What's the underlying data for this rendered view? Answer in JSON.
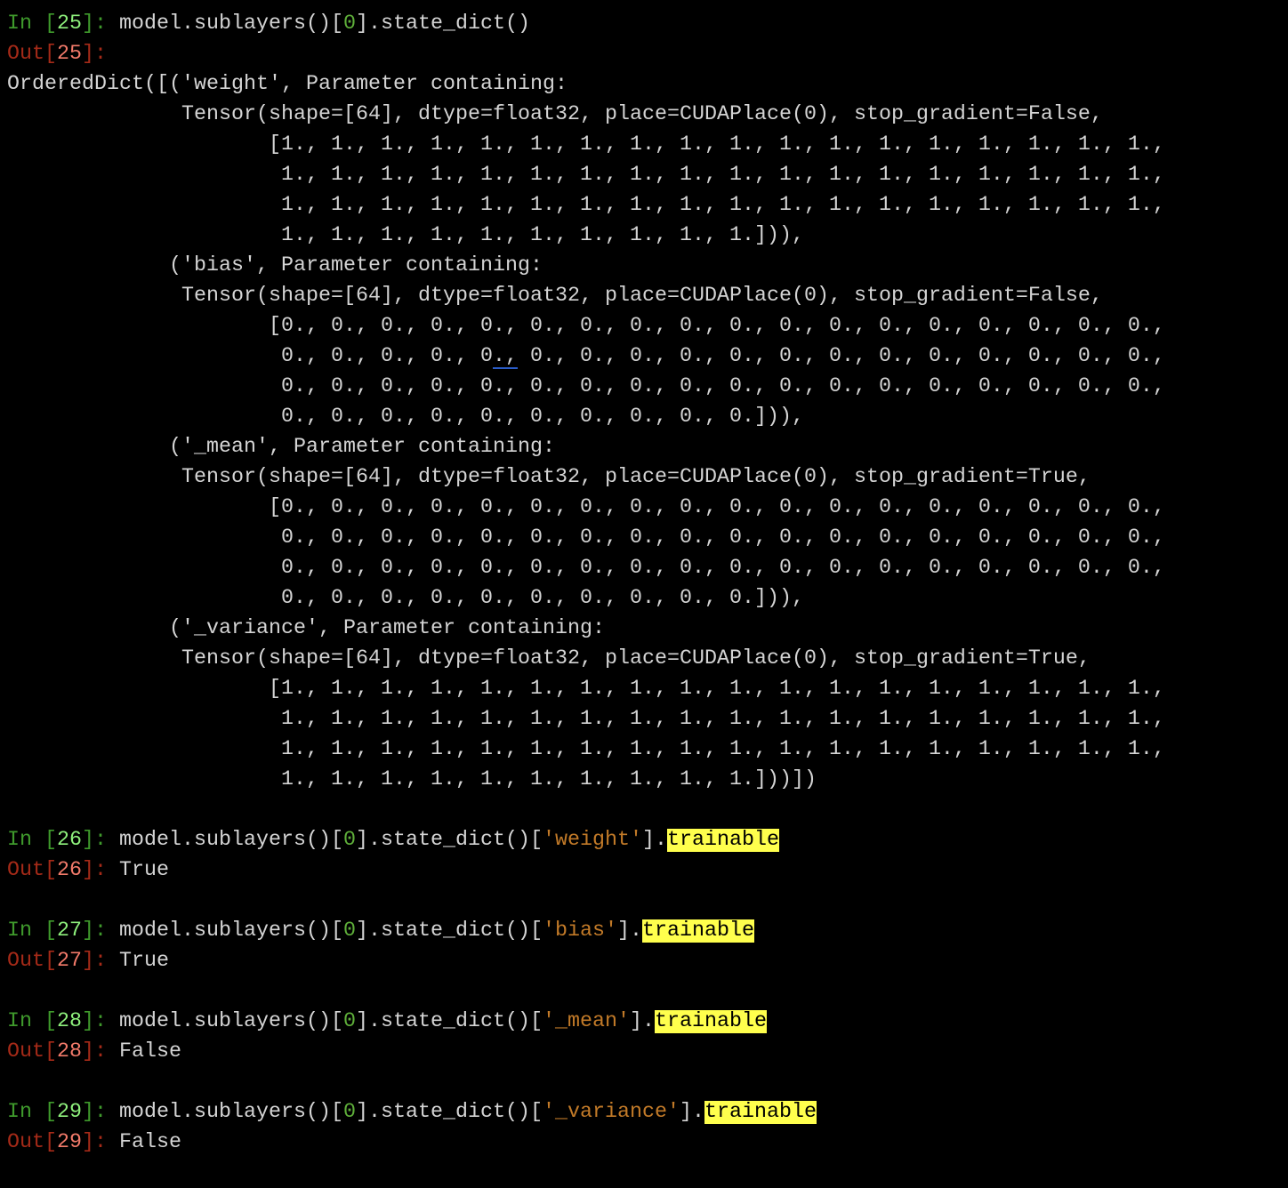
{
  "cells": [
    {
      "in_number": "25",
      "code": [
        {
          "text": "model.sublayers()[",
          "kind": "plain"
        },
        {
          "text": "0",
          "kind": "number"
        },
        {
          "text": "].state_dict()",
          "kind": "plain"
        }
      ],
      "out_number": "25",
      "output_inline": "",
      "output_lines": [
        "OrderedDict([('weight', Parameter containing:",
        "              Tensor(shape=[64], dtype=float32, place=CUDAPlace(0), stop_gradient=False,",
        "                     [1., 1., 1., 1., 1., 1., 1., 1., 1., 1., 1., 1., 1., 1., 1., 1., 1., 1.,",
        "                      1., 1., 1., 1., 1., 1., 1., 1., 1., 1., 1., 1., 1., 1., 1., 1., 1., 1.,",
        "                      1., 1., 1., 1., 1., 1., 1., 1., 1., 1., 1., 1., 1., 1., 1., 1., 1., 1.,",
        "                      1., 1., 1., 1., 1., 1., 1., 1., 1., 1.])),",
        "             ('bias', Parameter containing:",
        "              Tensor(shape=[64], dtype=float32, place=CUDAPlace(0), stop_gradient=False,",
        "                     [0., 0., 0., 0., 0., 0., 0., 0., 0., 0., 0., 0., 0., 0., 0., 0., 0., 0.,",
        "                      0., 0., 0., 0., 0., 0., 0., 0., 0., 0., 0., 0., 0., 0., 0., 0., 0., 0.,",
        "                      0., 0., 0., 0., 0., 0., 0., 0., 0., 0., 0., 0., 0., 0., 0., 0., 0., 0.,",
        "                      0., 0., 0., 0., 0., 0., 0., 0., 0., 0.])),",
        "             ('_mean', Parameter containing:",
        "              Tensor(shape=[64], dtype=float32, place=CUDAPlace(0), stop_gradient=True,",
        "                     [0., 0., 0., 0., 0., 0., 0., 0., 0., 0., 0., 0., 0., 0., 0., 0., 0., 0.,",
        "                      0., 0., 0., 0., 0., 0., 0., 0., 0., 0., 0., 0., 0., 0., 0., 0., 0., 0.,",
        "                      0., 0., 0., 0., 0., 0., 0., 0., 0., 0., 0., 0., 0., 0., 0., 0., 0., 0.,",
        "                      0., 0., 0., 0., 0., 0., 0., 0., 0., 0.])),",
        "             ('_variance', Parameter containing:",
        "              Tensor(shape=[64], dtype=float32, place=CUDAPlace(0), stop_gradient=True,",
        "                     [1., 1., 1., 1., 1., 1., 1., 1., 1., 1., 1., 1., 1., 1., 1., 1., 1., 1.,",
        "                      1., 1., 1., 1., 1., 1., 1., 1., 1., 1., 1., 1., 1., 1., 1., 1., 1., 1.,",
        "                      1., 1., 1., 1., 1., 1., 1., 1., 1., 1., 1., 1., 1., 1., 1., 1., 1., 1.,",
        "                      1., 1., 1., 1., 1., 1., 1., 1., 1., 1.]))])"
      ]
    },
    {
      "in_number": "26",
      "code": [
        {
          "text": "model.sublayers()[",
          "kind": "plain"
        },
        {
          "text": "0",
          "kind": "number"
        },
        {
          "text": "].state_dict()[",
          "kind": "plain"
        },
        {
          "text": "'weight'",
          "kind": "string"
        },
        {
          "text": "].",
          "kind": "plain"
        },
        {
          "text": "trainable",
          "kind": "highlight"
        }
      ],
      "out_number": "26",
      "output_inline": "True",
      "output_lines": []
    },
    {
      "in_number": "27",
      "code": [
        {
          "text": "model.sublayers()[",
          "kind": "plain"
        },
        {
          "text": "0",
          "kind": "number"
        },
        {
          "text": "].state_dict()[",
          "kind": "plain"
        },
        {
          "text": "'bias'",
          "kind": "string"
        },
        {
          "text": "].",
          "kind": "plain"
        },
        {
          "text": "trainable",
          "kind": "highlight"
        }
      ],
      "out_number": "27",
      "output_inline": "True",
      "output_lines": []
    },
    {
      "in_number": "28",
      "code": [
        {
          "text": "model.sublayers()[",
          "kind": "plain"
        },
        {
          "text": "0",
          "kind": "number"
        },
        {
          "text": "].state_dict()[",
          "kind": "plain"
        },
        {
          "text": "'_mean'",
          "kind": "string"
        },
        {
          "text": "].",
          "kind": "plain"
        },
        {
          "text": "trainable",
          "kind": "highlight"
        }
      ],
      "out_number": "28",
      "output_inline": "False",
      "output_lines": []
    },
    {
      "in_number": "29",
      "code": [
        {
          "text": "model.sublayers()[",
          "kind": "plain"
        },
        {
          "text": "0",
          "kind": "number"
        },
        {
          "text": "].state_dict()[",
          "kind": "plain"
        },
        {
          "text": "'_variance'",
          "kind": "string"
        },
        {
          "text": "].",
          "kind": "plain"
        },
        {
          "text": "trainable",
          "kind": "highlight"
        }
      ],
      "out_number": "29",
      "output_inline": "False",
      "output_lines": []
    }
  ],
  "prompts": {
    "in_label": "In ",
    "out_label": "Out"
  },
  "colors": {
    "background": "#000000",
    "text": "#d4d4d4",
    "in_prompt": "#3f9a2c",
    "out_prompt": "#a52a18",
    "string": "#c27a28",
    "highlight": "#ffff4d"
  }
}
